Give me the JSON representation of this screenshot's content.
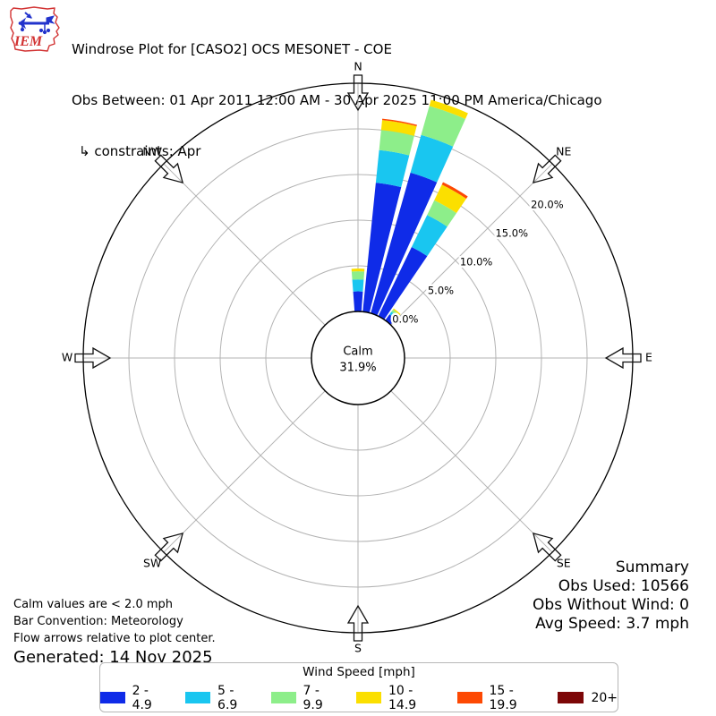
{
  "header": {
    "logo_text": "IEM",
    "title": "Windrose Plot for [CASO2] OCS MESONET - COE",
    "subtitle": "Obs Between: 01 Apr 2011 12:00 AM - 30 Apr 2025 11:00 PM America/Chicago",
    "constraint": "↳ constraints: Apr"
  },
  "chart_data": {
    "type": "windrose",
    "title": "Windrose Plot for [CASO2] OCS MESONET - COE",
    "units": "percent frequency by wind speed bin [mph]",
    "sector_width_deg": 10,
    "rmax_percent": 25,
    "ring_ticks": [
      {
        "percent": 0,
        "label": "0.0%"
      },
      {
        "percent": 5,
        "label": "5.0%"
      },
      {
        "percent": 10,
        "label": "10.0%"
      },
      {
        "percent": 15,
        "label": "15.0%"
      },
      {
        "percent": 20,
        "label": "20.0%"
      }
    ],
    "compass_points": [
      "N",
      "NE",
      "E",
      "SE",
      "S",
      "SW",
      "W",
      "NW"
    ],
    "calm": {
      "label": "Calm",
      "percent": 31.9,
      "display": "31.9%"
    },
    "legend_title": "Wind Speed [mph]",
    "legend_position": "bottom-center",
    "speed_bins": [
      {
        "label": "2 - 4.9",
        "color": "#0f2be8"
      },
      {
        "label": "5 - 6.9",
        "color": "#19c6f0"
      },
      {
        "label": "7 - 9.9",
        "color": "#8dee8a"
      },
      {
        "label": "10 - 14.9",
        "color": "#fbdf00"
      },
      {
        "label": "15 - 19.9",
        "color": "#fd4903"
      },
      {
        "label": "20+",
        "color": "#7c0607"
      }
    ],
    "sectors": [
      {
        "azimuth_deg": 0,
        "values_percent": [
          2.2,
          1.3,
          0.9,
          0.3,
          0,
          0
        ]
      },
      {
        "azimuth_deg": 10,
        "values_percent": [
          14.2,
          3.6,
          2.2,
          1.1,
          0.15,
          0
        ]
      },
      {
        "azimuth_deg": 20,
        "values_percent": [
          16.0,
          4.3,
          3.3,
          0.7,
          0,
          0
        ]
      },
      {
        "azimuth_deg": 30,
        "values_percent": [
          8.4,
          3.9,
          1.8,
          1.9,
          0.3,
          0
        ]
      },
      {
        "azimuth_deg": 40,
        "values_percent": [
          0.8,
          0.35,
          0.3,
          0.15,
          0,
          0
        ]
      }
    ]
  },
  "notes": {
    "line1": "Calm values are < 2.0 mph",
    "line2": "Bar Convention: Meteorology",
    "line3": "Flow arrows relative to plot center.",
    "generated": "Generated: 14 Nov 2025"
  },
  "summary": {
    "title": "Summary",
    "obs_used": "Obs Used: 10566",
    "obs_without_wind": "Obs Without Wind: 0",
    "avg_speed": "Avg Speed: 3.7 mph"
  }
}
